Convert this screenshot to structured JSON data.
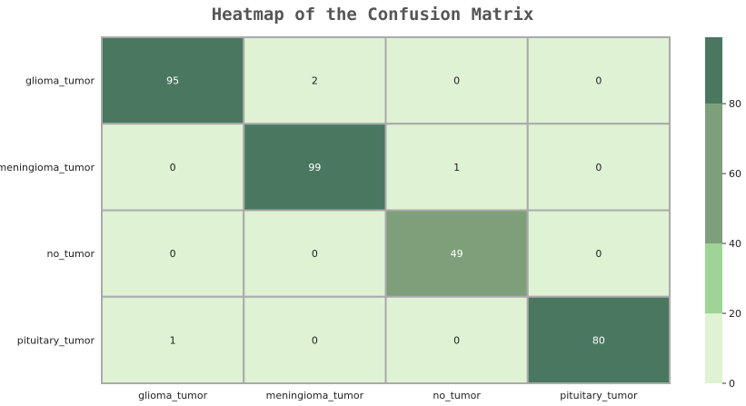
{
  "chart_data": {
    "type": "heatmap",
    "title": "Heatmap of the Confusion Matrix",
    "xlabel": "",
    "ylabel": "",
    "x_categories": [
      "glioma_tumor",
      "meningioma_tumor",
      "no_tumor",
      "pituitary_tumor"
    ],
    "y_categories": [
      "glioma_tumor",
      "meningioma_tumor",
      "no_tumor",
      "pituitary_tumor"
    ],
    "values": [
      [
        95,
        2,
        0,
        0
      ],
      [
        0,
        99,
        1,
        0
      ],
      [
        0,
        0,
        49,
        0
      ],
      [
        1,
        0,
        0,
        80
      ]
    ],
    "vmin": 0,
    "vmax": 99,
    "colorbar": {
      "ticks": [
        "0",
        "20",
        "40",
        "60",
        "80"
      ],
      "levels": [
        {
          "from": 0,
          "to": 20,
          "color": "#dff2d4"
        },
        {
          "from": 20,
          "to": 40,
          "color": "#9ed495"
        },
        {
          "from": 40,
          "to": 80,
          "color": "#7d9f79"
        },
        {
          "from": 80,
          "to": 99,
          "color": "#4a7760"
        }
      ]
    },
    "grid_line_color": "#aaaaaa",
    "annotations": true
  }
}
